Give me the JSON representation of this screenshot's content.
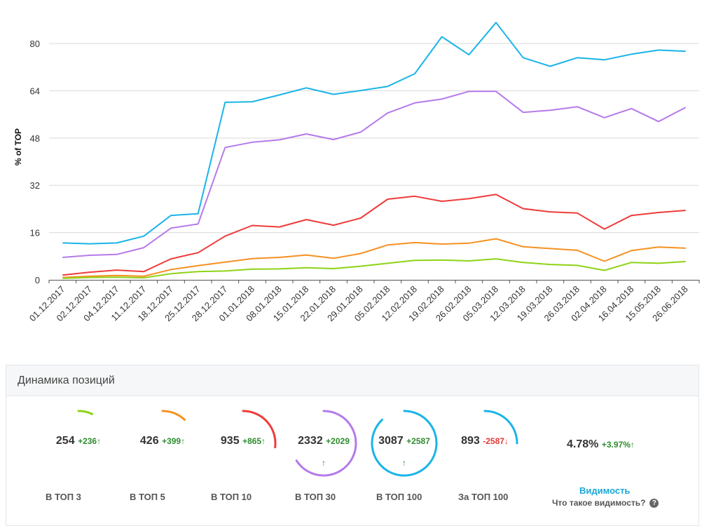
{
  "chart_data": {
    "type": "line",
    "ylabel": "% of TOP",
    "ylim": [
      0,
      90
    ],
    "yticks": [
      0,
      16,
      32,
      48,
      64,
      80
    ],
    "grid": true,
    "categories": [
      "01.12.2017",
      "02.12.2017",
      "04.12.2017",
      "11.12.2017",
      "18.12.2017",
      "25.12.2017",
      "28.12.2017",
      "01.01.2018",
      "08.01.2018",
      "15.01.2018",
      "22.01.2018",
      "29.01.2018",
      "05.02.2018",
      "12.02.2018",
      "19.02.2018",
      "26.02.2018",
      "05.03.2018",
      "12.03.2018",
      "19.03.2018",
      "26.03.2018",
      "02.04.2018",
      "16.04.2018",
      "15.05.2018",
      "26.06.2018"
    ],
    "series": [
      {
        "color": "#1ab4e8",
        "values": [
          12.5,
          12.2,
          12.5,
          14.8,
          21.8,
          22.4,
          60.1,
          60.3,
          62.6,
          65.0,
          62.8,
          64.1,
          65.5,
          69.8,
          82.3,
          76.2,
          87.1,
          75.2,
          72.3,
          75.2,
          74.5,
          76.4,
          77.8,
          77.4
        ]
      },
      {
        "color": "#b57aea",
        "values": [
          7.6,
          8.3,
          8.6,
          10.9,
          17.5,
          18.9,
          44.8,
          46.6,
          47.4,
          49.4,
          47.5,
          50.0,
          56.5,
          59.9,
          61.2,
          63.8,
          63.8,
          56.7,
          57.4,
          58.6,
          54.9,
          58.0,
          53.6,
          58.4
        ]
      },
      {
        "color": "#ef3b3b",
        "values": [
          1.6,
          2.6,
          3.3,
          2.8,
          7.1,
          9.2,
          14.8,
          18.4,
          17.9,
          20.4,
          18.5,
          20.9,
          27.3,
          28.3,
          26.6,
          27.5,
          28.9,
          24.1,
          23.0,
          22.6,
          17.2,
          21.8,
          22.8,
          23.5
        ]
      },
      {
        "color": "#f59121",
        "values": [
          0.8,
          1.2,
          1.5,
          1.2,
          3.5,
          4.8,
          6.0,
          7.2,
          7.6,
          8.4,
          7.3,
          8.9,
          11.8,
          12.6,
          12.1,
          12.4,
          13.9,
          11.2,
          10.6,
          10.0,
          6.3,
          9.9,
          11.1,
          10.7
        ]
      },
      {
        "color": "#8ed318",
        "values": [
          0.5,
          0.8,
          0.9,
          0.7,
          2.1,
          2.8,
          3.0,
          3.6,
          3.7,
          4.1,
          3.8,
          4.6,
          5.6,
          6.6,
          6.7,
          6.4,
          7.1,
          5.9,
          5.2,
          4.9,
          3.2,
          5.9,
          5.6,
          6.2
        ]
      }
    ]
  },
  "panel": {
    "title": "Динамика позиций",
    "metrics": [
      {
        "value": "254",
        "delta": "+236",
        "arrow": "↑",
        "label": "В ТОП 3",
        "color": "#8ed318",
        "gauge": 0.07,
        "sign": "pos",
        "arrow_below": false
      },
      {
        "value": "426",
        "delta": "+399",
        "arrow": "↑",
        "label": "В ТОП 5",
        "color": "#f59121",
        "gauge": 0.12,
        "sign": "pos",
        "arrow_below": false
      },
      {
        "value": "935",
        "delta": "+865",
        "arrow": "↑",
        "label": "В ТОП 10",
        "color": "#ef3b3b",
        "gauge": 0.27,
        "sign": "pos",
        "arrow_below": false
      },
      {
        "value": "2332",
        "delta": "+2029",
        "arrow": "↑",
        "label": "В ТОП 30",
        "color": "#b57aea",
        "gauge": 0.66,
        "sign": "pos",
        "arrow_below": true
      },
      {
        "value": "3087",
        "delta": "+2587",
        "arrow": "↑",
        "label": "В ТОП 100",
        "color": "#1ab4e8",
        "gauge": 0.88,
        "sign": "pos",
        "arrow_below": true
      },
      {
        "value": "893",
        "delta": "-2587",
        "arrow": "↓",
        "label": "За ТОП 100",
        "color": "#1ab4e8",
        "gauge": 0.25,
        "sign": "neg",
        "arrow_below": false
      }
    ],
    "visibility": {
      "value": "4.78%",
      "delta": "+3.97%",
      "arrow": "↑",
      "title": "Видимость",
      "help_text": "Что такое видимость?",
      "help_icon": "question-icon"
    }
  }
}
